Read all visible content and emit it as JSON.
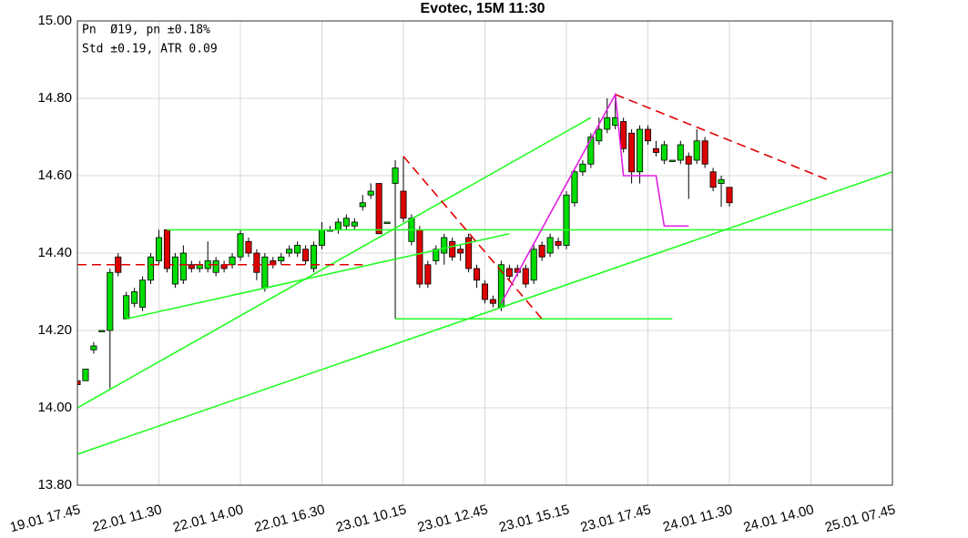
{
  "chart_data": {
    "type": "candlestick",
    "title": "Evotec, 15M 11:30",
    "annotations": [
      "Pn  Ø19, pn ±0.18%",
      "Std ±0.19, ATR 0.09"
    ],
    "up_color": "#00dd00",
    "down_color": "#dd0000",
    "grid": true,
    "xlim": [
      0,
      100
    ],
    "xticks": [
      {
        "value": 0,
        "label": "19.01 17.45"
      },
      {
        "value": 10,
        "label": "22.01 11.30"
      },
      {
        "value": 20,
        "label": "22.01 14.00"
      },
      {
        "value": 30,
        "label": "22.01 16.30"
      },
      {
        "value": 40,
        "label": "23.01 10.15"
      },
      {
        "value": 50,
        "label": "23.01 12.45"
      },
      {
        "value": 60,
        "label": "23.01 15.15"
      },
      {
        "value": 70,
        "label": "23.01 17.45"
      },
      {
        "value": 80,
        "label": "24.01 11.30"
      },
      {
        "value": 90,
        "label": "24.01 14.00"
      },
      {
        "value": 100,
        "label": "25.01 07.45"
      }
    ],
    "ylim": [
      13.8,
      15.0
    ],
    "yticks": [
      {
        "value": 13.8,
        "label": "13.80"
      },
      {
        "value": 14.0,
        "label": "14.00"
      },
      {
        "value": 14.2,
        "label": "14.20"
      },
      {
        "value": 14.4,
        "label": "14.40"
      },
      {
        "value": 14.6,
        "label": "14.60"
      },
      {
        "value": 14.8,
        "label": "14.80"
      },
      {
        "value": 15.0,
        "label": "15.00"
      }
    ],
    "x": [
      0,
      1,
      2,
      3,
      4,
      5,
      6,
      7,
      8,
      9,
      10,
      11,
      12,
      13,
      14,
      15,
      16,
      17,
      18,
      19,
      20,
      21,
      22,
      23,
      24,
      25,
      26,
      27,
      28,
      29,
      30,
      31,
      32,
      33,
      34,
      35,
      36,
      37,
      38,
      39,
      40,
      41,
      42,
      43,
      44,
      45,
      46,
      47,
      48,
      49,
      50,
      51,
      52,
      53,
      54,
      55,
      56,
      57,
      58,
      59,
      60,
      61,
      62,
      63,
      64,
      65,
      66,
      67,
      68,
      69,
      70,
      71,
      72,
      73,
      74,
      75,
      76,
      77,
      78,
      79,
      80
    ],
    "open": [
      14.07,
      14.07,
      14.15,
      14.2,
      14.2,
      14.39,
      14.23,
      14.27,
      14.26,
      14.33,
      14.38,
      14.46,
      14.32,
      14.33,
      14.37,
      14.36,
      14.36,
      14.35,
      14.37,
      14.37,
      14.39,
      14.43,
      14.4,
      14.31,
      14.38,
      14.38,
      14.4,
      14.4,
      14.41,
      14.36,
      14.42,
      14.46,
      14.46,
      14.47,
      14.47,
      14.52,
      14.55,
      14.58,
      14.48,
      14.58,
      14.56,
      14.43,
      14.46,
      14.37,
      14.38,
      14.4,
      14.43,
      14.41,
      14.44,
      14.36,
      14.32,
      14.28,
      14.26,
      14.36,
      14.36,
      14.36,
      14.33,
      14.42,
      14.4,
      14.43,
      14.42,
      14.53,
      14.61,
      14.63,
      14.69,
      14.72,
      14.73,
      14.74,
      14.71,
      14.61,
      14.72,
      14.67,
      14.64,
      14.64,
      14.64,
      14.65,
      14.64,
      14.69,
      14.61,
      14.58,
      14.57
    ],
    "high": [
      14.08,
      14.1,
      14.17,
      14.2,
      14.36,
      14.4,
      14.3,
      14.31,
      14.34,
      14.4,
      14.46,
      14.46,
      14.4,
      14.42,
      14.38,
      14.38,
      14.43,
      14.39,
      14.38,
      14.4,
      14.46,
      14.44,
      14.41,
      14.4,
      14.39,
      14.4,
      14.42,
      14.43,
      14.42,
      14.43,
      14.48,
      14.47,
      14.49,
      14.5,
      14.49,
      14.55,
      14.58,
      14.58,
      14.48,
      14.64,
      14.65,
      14.5,
      14.47,
      14.38,
      14.42,
      14.45,
      14.44,
      14.42,
      14.45,
      14.37,
      14.33,
      14.29,
      14.38,
      14.37,
      14.37,
      14.37,
      14.42,
      14.43,
      14.45,
      14.44,
      14.56,
      14.62,
      14.64,
      14.71,
      14.75,
      14.8,
      14.81,
      14.75,
      14.72,
      14.73,
      14.73,
      14.69,
      14.69,
      14.64,
      14.69,
      14.66,
      14.72,
      14.7,
      14.62,
      14.6,
      14.57
    ],
    "low": [
      14.05,
      14.07,
      14.14,
      14.2,
      14.05,
      14.34,
      14.23,
      14.26,
      14.25,
      14.32,
      14.37,
      14.35,
      14.31,
      14.32,
      14.35,
      14.35,
      14.35,
      14.34,
      14.35,
      14.36,
      14.38,
      14.39,
      14.33,
      14.3,
      14.36,
      14.37,
      14.39,
      14.39,
      14.37,
      14.35,
      14.41,
      14.46,
      14.45,
      14.46,
      14.46,
      14.51,
      14.54,
      14.45,
      14.48,
      14.23,
      14.48,
      14.42,
      14.31,
      14.31,
      14.37,
      14.37,
      14.38,
      14.38,
      14.35,
      14.31,
      14.27,
      14.26,
      14.25,
      14.33,
      14.34,
      14.31,
      14.32,
      14.38,
      14.39,
      14.41,
      14.41,
      14.52,
      14.6,
      14.62,
      14.68,
      14.71,
      14.72,
      14.66,
      14.58,
      14.58,
      14.68,
      14.65,
      14.63,
      14.64,
      14.63,
      14.54,
      14.63,
      14.62,
      14.56,
      14.52,
      14.52
    ],
    "close": [
      14.06,
      14.1,
      14.16,
      14.2,
      14.35,
      14.35,
      14.29,
      14.3,
      14.33,
      14.39,
      14.44,
      14.36,
      14.39,
      14.4,
      14.36,
      14.37,
      14.38,
      14.38,
      14.36,
      14.39,
      14.45,
      14.4,
      14.35,
      14.39,
      14.37,
      14.39,
      14.41,
      14.42,
      14.38,
      14.42,
      14.46,
      14.46,
      14.48,
      14.49,
      14.48,
      14.53,
      14.56,
      14.45,
      14.48,
      14.62,
      14.49,
      14.49,
      14.32,
      14.32,
      14.41,
      14.44,
      14.39,
      14.4,
      14.36,
      14.33,
      14.28,
      14.27,
      14.37,
      14.34,
      14.35,
      14.32,
      14.41,
      14.39,
      14.44,
      14.42,
      14.55,
      14.61,
      14.63,
      14.7,
      14.72,
      14.75,
      14.75,
      14.67,
      14.61,
      14.72,
      14.69,
      14.66,
      14.68,
      14.64,
      14.68,
      14.63,
      14.69,
      14.63,
      14.57,
      14.59,
      14.53
    ],
    "lines": [
      {
        "color": "#22ff22",
        "style": "solid",
        "x": [
          0,
          63
        ],
        "y": [
          14.0,
          14.75
        ]
      },
      {
        "color": "#22ff22",
        "style": "solid",
        "x": [
          0,
          100
        ],
        "y": [
          13.88,
          14.61
        ]
      },
      {
        "color": "#22ff22",
        "style": "solid",
        "x": [
          11,
          100
        ],
        "y": [
          14.46,
          14.46
        ]
      },
      {
        "color": "#22ff22",
        "style": "solid",
        "x": [
          6,
          53
        ],
        "y": [
          14.23,
          14.45
        ]
      },
      {
        "color": "#22ff22",
        "style": "solid",
        "x": [
          39,
          73
        ],
        "y": [
          14.23,
          14.23
        ]
      },
      {
        "color": "#e00000",
        "style": "dashed",
        "x": [
          0,
          35
        ],
        "y": [
          14.37,
          14.37
        ]
      },
      {
        "color": "#e00000",
        "style": "dashed",
        "x": [
          40,
          57
        ],
        "y": [
          14.65,
          14.23
        ]
      },
      {
        "color": "#e00000",
        "style": "dashed",
        "x": [
          66,
          92
        ],
        "y": [
          14.81,
          14.59
        ]
      },
      {
        "color": "#e020e0",
        "style": "solid",
        "x": [
          52,
          66,
          67,
          71,
          72,
          75
        ],
        "y": [
          14.27,
          14.81,
          14.6,
          14.6,
          14.47,
          14.47
        ]
      }
    ]
  }
}
